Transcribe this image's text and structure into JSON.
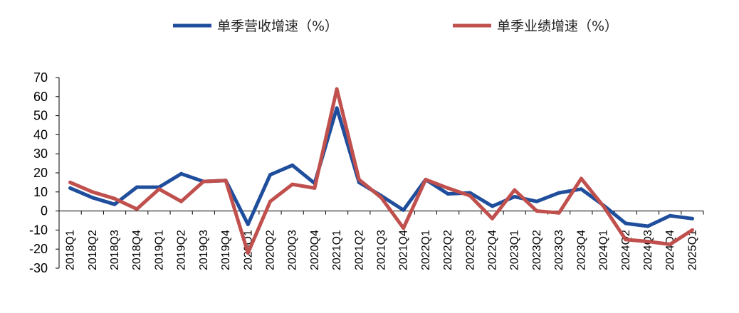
{
  "chart_data": {
    "type": "line",
    "categories": [
      "2018Q1",
      "2018Q2",
      "2018Q3",
      "2018Q4",
      "2019Q1",
      "2019Q2",
      "2019Q3",
      "2019Q4",
      "2020Q1",
      "2020Q2",
      "2020Q3",
      "2020Q4",
      "2021Q1",
      "2021Q2",
      "2021Q3",
      "2021Q4",
      "2022Q1",
      "2022Q2",
      "2022Q3",
      "2022Q4",
      "2023Q1",
      "2023Q2",
      "2023Q3",
      "2023Q4",
      "2024Q1",
      "2024Q2",
      "2024Q3",
      "2024Q4",
      "2025Q1"
    ],
    "series": [
      {
        "name": "单季营收增速（%）",
        "color": "#1f4e9c",
        "values": [
          12,
          7,
          3.5,
          12.5,
          12.5,
          19.5,
          15.5,
          16,
          -7,
          19,
          24,
          14.5,
          54,
          15,
          8,
          0.5,
          16.5,
          9,
          9.5,
          2.5,
          7.5,
          5,
          9.5,
          11.5,
          3,
          -6.5,
          -8,
          -2.5,
          -4
        ]
      },
      {
        "name": "单季业绩增速（%）",
        "color": "#c0504d",
        "values": [
          15,
          10,
          6.5,
          1,
          11.5,
          5,
          15.5,
          16,
          -22,
          5,
          14,
          12,
          64,
          16.5,
          7,
          -9,
          16.5,
          12,
          8,
          -4,
          11,
          0,
          -1,
          17,
          2.5,
          -15,
          -16,
          -17.5,
          -10
        ]
      }
    ],
    "ylim": [
      -30,
      70
    ],
    "yticks": [
      -30,
      -20,
      -10,
      0,
      10,
      20,
      30,
      40,
      50,
      60,
      70
    ],
    "legend_position": "top-center",
    "grid": false,
    "title": "",
    "xlabel": "",
    "ylabel": ""
  }
}
